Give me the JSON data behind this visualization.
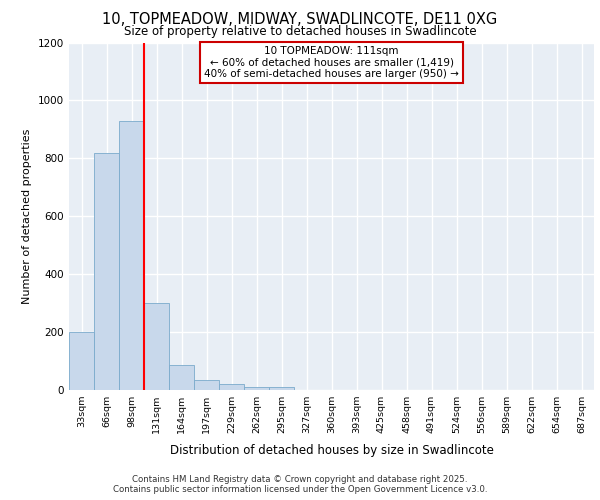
{
  "title": "10, TOPMEADOW, MIDWAY, SWADLINCOTE, DE11 0XG",
  "subtitle": "Size of property relative to detached houses in Swadlincote",
  "xlabel": "Distribution of detached houses by size in Swadlincote",
  "ylabel": "Number of detached properties",
  "bin_labels": [
    "33sqm",
    "66sqm",
    "98sqm",
    "131sqm",
    "164sqm",
    "197sqm",
    "229sqm",
    "262sqm",
    "295sqm",
    "327sqm",
    "360sqm",
    "393sqm",
    "425sqm",
    "458sqm",
    "491sqm",
    "524sqm",
    "556sqm",
    "589sqm",
    "622sqm",
    "654sqm",
    "687sqm"
  ],
  "bar_heights": [
    200,
    820,
    930,
    300,
    85,
    35,
    20,
    10,
    10,
    0,
    0,
    0,
    0,
    0,
    0,
    0,
    0,
    0,
    0,
    0,
    0
  ],
  "bar_color": "#c8d8eb",
  "bar_edge_color": "#7aaacc",
  "annotation_title": "10 TOPMEADOW: 111sqm",
  "annotation_line2": "← 60% of detached houses are smaller (1,419)",
  "annotation_line3": "40% of semi-detached houses are larger (950) →",
  "annotation_box_color": "#cc0000",
  "ylim": [
    0,
    1200
  ],
  "yticks": [
    0,
    200,
    400,
    600,
    800,
    1000,
    1200
  ],
  "background_color": "#e8eef5",
  "grid_color": "#ffffff",
  "footer_line1": "Contains HM Land Registry data © Crown copyright and database right 2025.",
  "footer_line2": "Contains public sector information licensed under the Open Government Licence v3.0."
}
